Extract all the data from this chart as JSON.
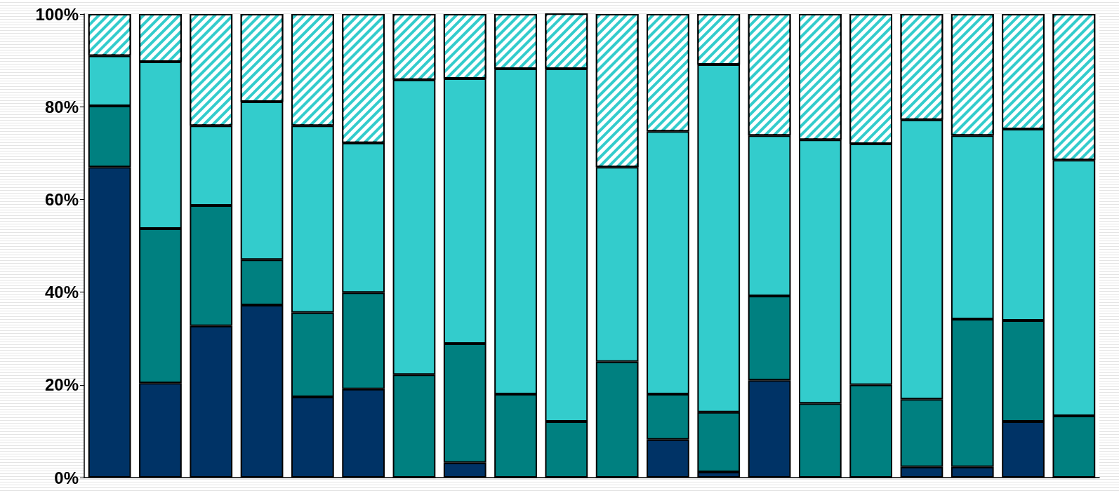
{
  "chart_data": {
    "type": "bar",
    "stacked": true,
    "categories": [
      null,
      null,
      null,
      null,
      null,
      null,
      null,
      null,
      null,
      null,
      null,
      null,
      null,
      null,
      null,
      null,
      null,
      null,
      null,
      null
    ],
    "series": [
      {
        "color": "#003366",
        "values": [
          67,
          20.4,
          32.7,
          37.2,
          17.4,
          19.1,
          0,
          3.2,
          0,
          0,
          0,
          8.2,
          1.2,
          21,
          0,
          0,
          2.3,
          2.3,
          12.1,
          0
        ]
      },
      {
        "color": "#008080",
        "values": [
          13.2,
          33.3,
          26,
          9.8,
          18.2,
          20.8,
          22.2,
          25.7,
          18,
          12.1,
          25,
          9.8,
          12.9,
          18.2,
          16,
          20,
          14.6,
          31.9,
          21.8,
          13.3
        ]
      },
      {
        "color": "#33cccc",
        "values": [
          10.8,
          36,
          17.2,
          34.1,
          40.3,
          32.3,
          63.6,
          57.2,
          70.2,
          76.1,
          42,
          56.7,
          75,
          34.6,
          56.9,
          52,
          60.3,
          39.6,
          41.3,
          55.2
        ]
      },
      {
        "color": "#33cccc",
        "values": [
          9,
          10.3,
          24.1,
          18.9,
          24.1,
          27.8,
          14.2,
          13.9,
          11.8,
          11.9,
          33,
          25.3,
          10.9,
          26.2,
          27.1,
          28,
          22.8,
          26.2,
          24.8,
          31.5
        ]
      }
    ],
    "ylim": [
      0,
      100
    ],
    "yticks": [
      {
        "value": 0,
        "label": "0%"
      },
      {
        "value": 20,
        "label": "20%"
      },
      {
        "value": 40,
        "label": "40%"
      },
      {
        "value": 60,
        "label": "60%"
      },
      {
        "value": 80,
        "label": "80%"
      },
      {
        "value": 100,
        "label": "100%"
      }
    ],
    "tick_labels": "y",
    "grid": false
  }
}
